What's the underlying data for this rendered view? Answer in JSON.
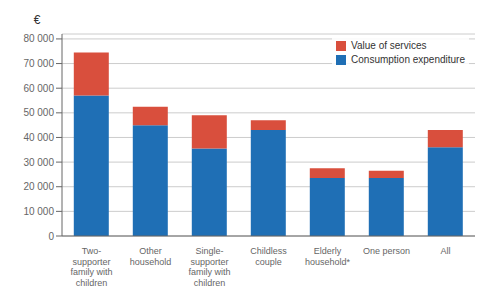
{
  "chart_data": {
    "type": "bar",
    "stacked": true,
    "ylabel": "€",
    "categories": [
      "Two-\nsupporter\nfamily with\nchildren",
      "Other\nhousehold",
      "Single-\nsupporter\nfamily with\nchildren",
      "Childless\ncouple",
      "Elderly\nhousehold*",
      "One person",
      "All"
    ],
    "series": [
      {
        "name": "Consumption expenditure",
        "color": "#1f6fb5",
        "values": [
          57000,
          45000,
          35500,
          43000,
          23500,
          23500,
          36000
        ]
      },
      {
        "name": "Value of services",
        "color": "#d94f3d",
        "values": [
          17500,
          7500,
          13500,
          4000,
          4000,
          3000,
          7000
        ]
      }
    ],
    "ylim": [
      0,
      82000
    ],
    "yticks": [
      0,
      {
        "value": 10000,
        "label": "10 000"
      },
      {
        "value": 20000,
        "label": "20 000"
      },
      {
        "value": 30000,
        "label": "30 000"
      },
      {
        "value": 40000,
        "label": "40 000"
      },
      {
        "value": 50000,
        "label": "50 000"
      },
      {
        "value": 60000,
        "label": "60 000"
      },
      {
        "value": 70000,
        "label": "70 000"
      },
      {
        "value": 80000,
        "label": "80 000"
      }
    ],
    "grid": true,
    "legend": "upper right"
  }
}
